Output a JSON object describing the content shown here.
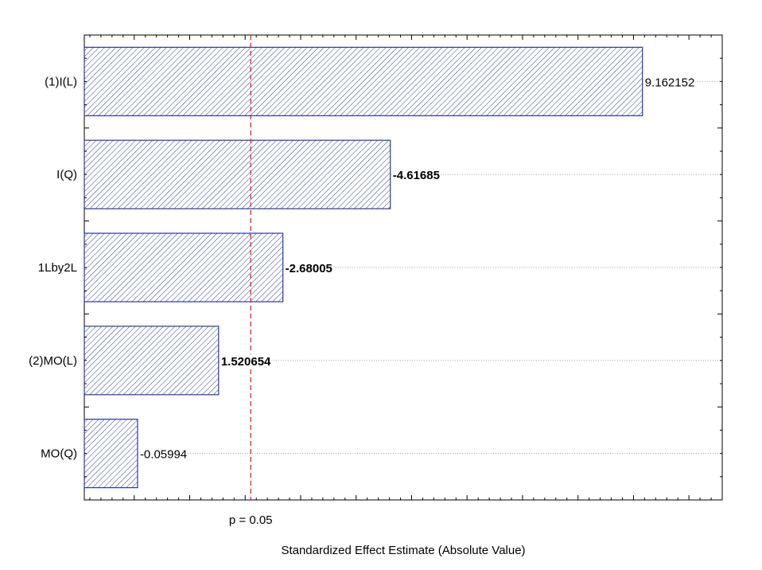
{
  "chart_data": {
    "type": "bar",
    "orientation": "horizontal",
    "categories": [
      "(1)I(L)",
      "I(Q)",
      "1Lby2L",
      "(2)MO(L)",
      "MO(Q)"
    ],
    "values": [
      9.162152,
      4.61685,
      2.68005,
      1.520654,
      0.05994
    ],
    "value_labels": [
      "9.162152",
      "-4.61685",
      "-2.68005",
      "1.520654",
      "-0.05994"
    ],
    "value_label_bold": [
      false,
      true,
      true,
      true,
      false
    ],
    "xlabel": "Standardized Effect Estimate (Absolute Value)",
    "xlim": [
      -0.9,
      10.6
    ],
    "grid": false,
    "reference_line": {
      "value": 2.1,
      "label": "p = 0.05",
      "color": "#e0202a"
    },
    "bar_fill": "#ffffff",
    "bar_edge": "#2a3a9e",
    "hatch_color": "#2a3a9e"
  }
}
